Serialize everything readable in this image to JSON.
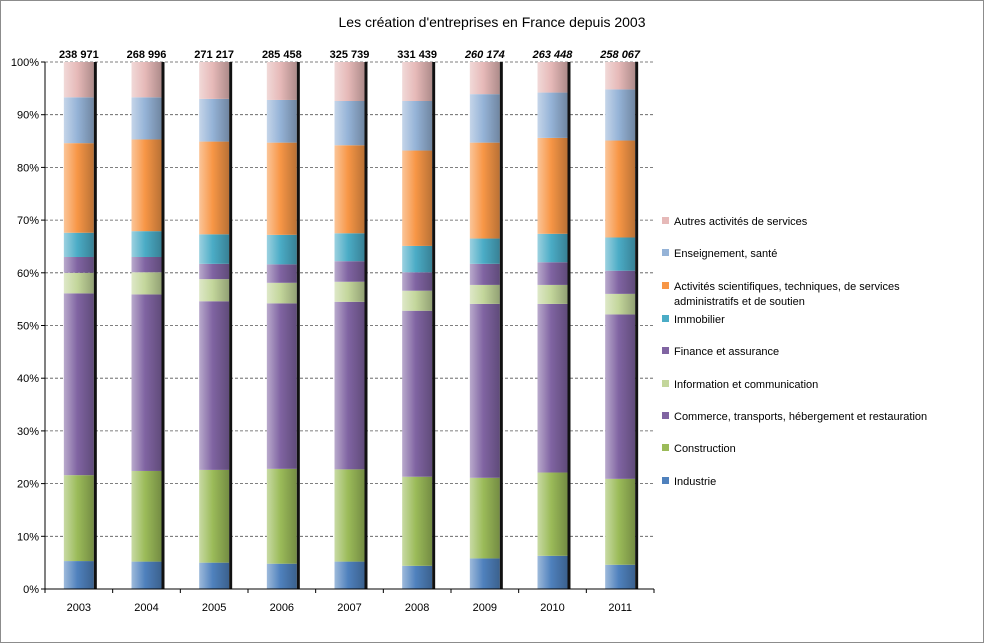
{
  "chart_data": {
    "type": "bar",
    "stacked": "percent",
    "title": "Les création d'entreprises en France depuis 2003",
    "xlabel": "",
    "ylabel": "",
    "ylim": [
      0,
      100
    ],
    "y_ticks": [
      "0%",
      "10%",
      "20%",
      "30%",
      "40%",
      "50%",
      "60%",
      "70%",
      "80%",
      "90%",
      "100%"
    ],
    "grid": "horizontal dashed",
    "legend_position": "right",
    "categories": [
      "2003",
      "2004",
      "2005",
      "2006",
      "2007",
      "2008",
      "2009",
      "2010",
      "2011"
    ],
    "totals": [
      "238 971",
      "268 996",
      "271 217",
      "285 458",
      "325 739",
      "331 439",
      "260 174",
      "263 448",
      "258 067"
    ],
    "totals_italic": [
      false,
      false,
      false,
      false,
      false,
      false,
      true,
      true,
      true
    ],
    "series": [
      {
        "name": "Industrie",
        "color": "#4f81bd",
        "values": [
          5.3,
          5.2,
          5.0,
          4.8,
          5.2,
          4.4,
          5.8,
          6.3,
          4.6
        ]
      },
      {
        "name": "Construction",
        "color": "#9bbb59",
        "values": [
          16.3,
          17.2,
          17.6,
          18.0,
          17.5,
          16.9,
          15.3,
          15.8,
          16.3
        ]
      },
      {
        "name": "Commerce, transports,  hébergement et restauration",
        "color": "#8064a2",
        "values": [
          34.5,
          33.5,
          32.0,
          31.4,
          31.8,
          31.5,
          33.0,
          32.0,
          31.2
        ]
      },
      {
        "name": "Information  et communication",
        "color": "#c3d69b",
        "values": [
          3.9,
          4.2,
          4.2,
          3.9,
          3.8,
          3.8,
          3.6,
          3.6,
          3.9
        ]
      },
      {
        "name": "Finance et assurance",
        "color": "#8064a2",
        "values": [
          3.0,
          2.9,
          2.9,
          3.5,
          3.9,
          3.5,
          4.0,
          4.3,
          4.4
        ]
      },
      {
        "name": "Immobilier",
        "color": "#4bacc6",
        "values": [
          4.6,
          4.9,
          5.6,
          5.6,
          5.3,
          5.0,
          4.8,
          5.4,
          6.3
        ]
      },
      {
        "name": "Activités scientifiques, techniques, de services administratifs  et de soutien",
        "color": "#f79646",
        "values": [
          17.0,
          17.4,
          17.6,
          17.5,
          16.7,
          18.1,
          18.2,
          18.2,
          18.4
        ]
      },
      {
        "name": "Enseignement, santé",
        "color": "#95b3d7",
        "values": [
          8.7,
          8.0,
          8.1,
          8.1,
          8.4,
          9.4,
          9.2,
          8.6,
          9.7
        ]
      },
      {
        "name": "Autres activités de services",
        "color": "#e6b9b8",
        "values": [
          6.7,
          6.7,
          7.0,
          7.2,
          7.4,
          7.4,
          6.1,
          5.8,
          5.2
        ]
      }
    ]
  }
}
